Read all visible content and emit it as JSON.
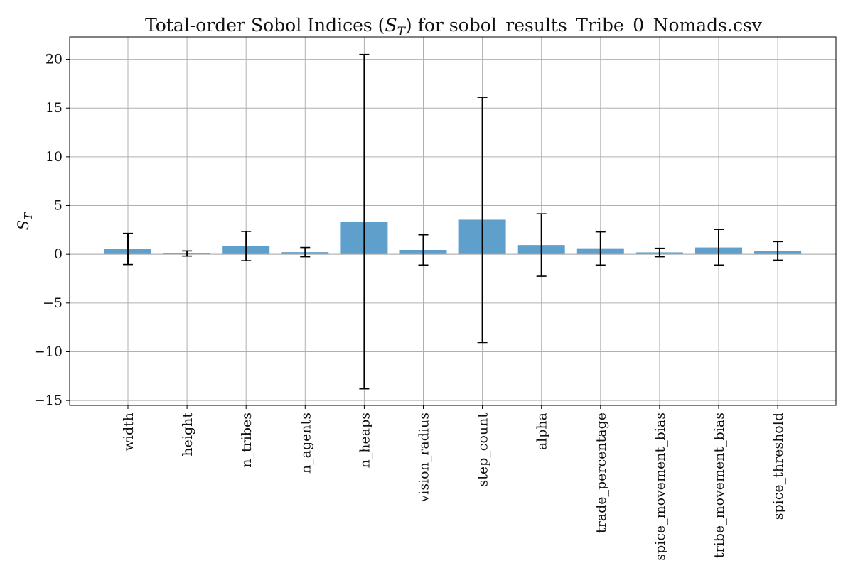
{
  "colors": {
    "bar": "#5f9fcc",
    "error_bar": "#000000",
    "grid": "#b0b0b0",
    "axis": "#000000"
  },
  "chart_data": {
    "type": "bar",
    "title": "Total-order Sobol Indices (S_T) for sobol_results_Tribe_0_Nomads.csv",
    "title_parts": {
      "before": "Total-order Sobol Indices (",
      "symbol": "S",
      "subscript": "T",
      "after": ") for sobol_results_Tribe_0_Nomads.csv"
    },
    "ylabel": {
      "symbol": "S",
      "subscript": "T"
    },
    "xlabel": "",
    "categories": [
      "width",
      "height",
      "n_tribes",
      "n_agents",
      "n_heaps",
      "vision_radius",
      "step_count",
      "alpha",
      "trade_percentage",
      "spice_movement_bias",
      "tribe_movement_bias",
      "spice_threshold"
    ],
    "values": [
      0.55,
      0.12,
      0.85,
      0.22,
      3.35,
      0.45,
      3.55,
      0.95,
      0.62,
      0.2,
      0.7,
      0.35
    ],
    "error_low": [
      -1.05,
      -0.18,
      -0.65,
      -0.25,
      -13.8,
      -1.1,
      -9.05,
      -2.25,
      -1.1,
      -0.25,
      -1.1,
      -0.6
    ],
    "error_high": [
      2.15,
      0.35,
      2.35,
      0.7,
      20.5,
      2.0,
      16.1,
      4.15,
      2.3,
      0.62,
      2.55,
      1.3
    ],
    "yticks": [
      -15,
      -10,
      -5,
      0,
      5,
      10,
      15,
      20
    ],
    "ytick_labels": [
      "−15",
      "−10",
      "−5",
      "0",
      "5",
      "10",
      "15",
      "20"
    ],
    "ylim": [
      -15.5,
      22.3
    ],
    "grid": true,
    "legend": "none"
  }
}
